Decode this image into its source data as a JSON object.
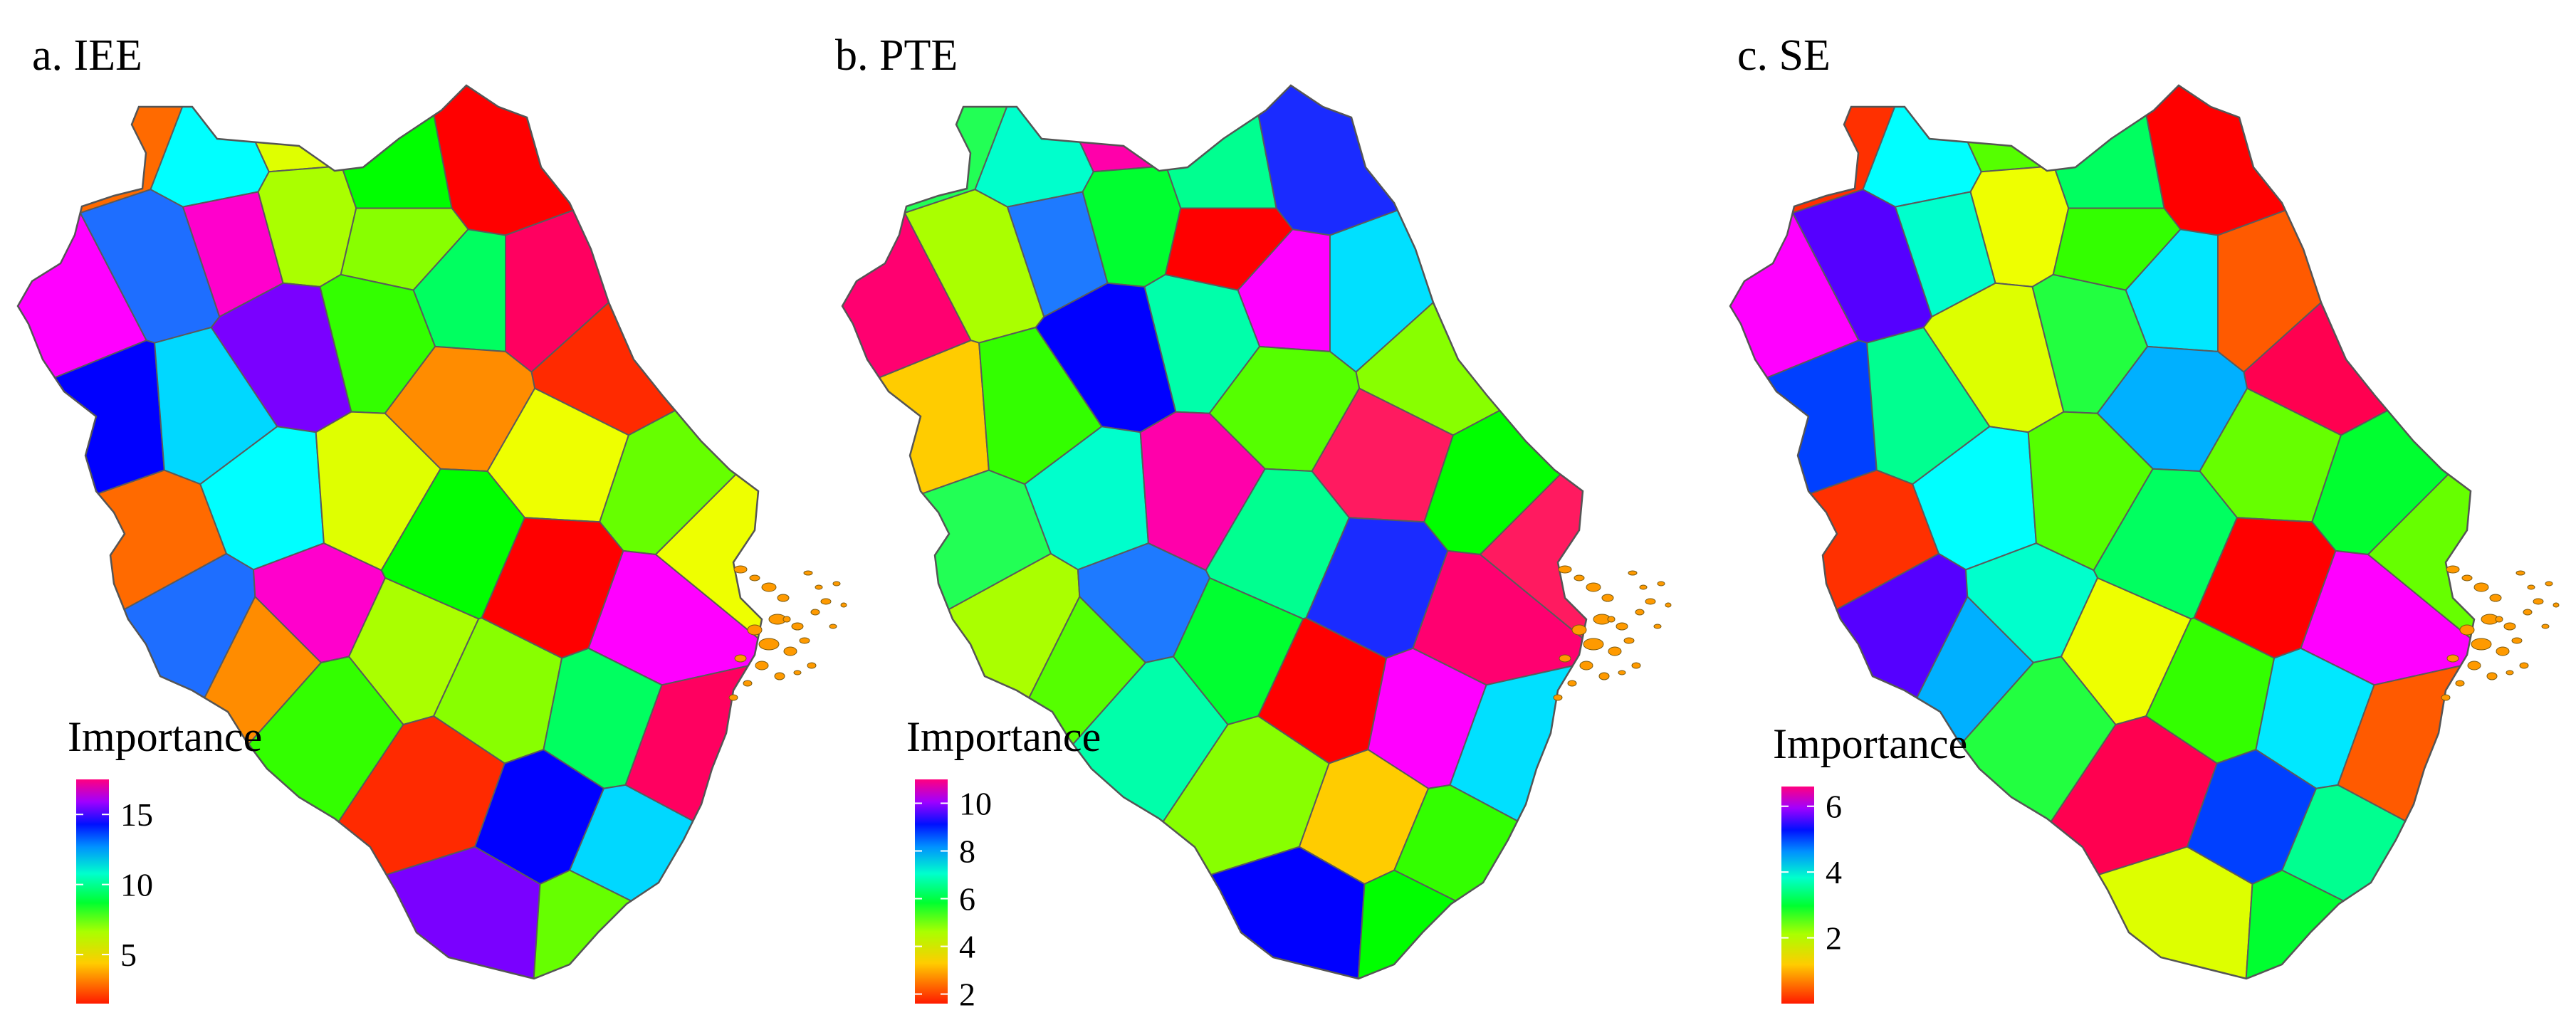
{
  "figure": {
    "panels": [
      {
        "id": "iee",
        "title": "a. IEE",
        "legend": {
          "title": "Importance",
          "min": 1.5,
          "max": 17.5,
          "ticks": [
            "15",
            "10",
            "5"
          ],
          "tick_values": [
            15,
            10,
            5
          ]
        },
        "colors": [
          "#ff6a00",
          "#00ffff",
          "#dfff00",
          "#00ff00",
          "#ff0000",
          "#ff00ff",
          "#1e6eff",
          "#ff00cc",
          "#aaff00",
          "#88ff00",
          "#00ff60",
          "#ff0060",
          "#ff2a00",
          "#0000ff",
          "#00d8ff",
          "#7a00ff",
          "#33ff00",
          "#ff8c00",
          "#eeff00",
          "#66ff00"
        ],
        "island_color": "#ff9a00"
      },
      {
        "id": "pte",
        "title": "b. PTE",
        "legend": {
          "title": "Importance",
          "min": 1.6,
          "max": 11.0,
          "ticks": [
            "10",
            "8",
            "6",
            "4",
            "2"
          ],
          "tick_values": [
            10,
            8,
            6,
            4,
            2
          ]
        },
        "colors": [
          "#22ff55",
          "#00ffcc",
          "#ff00aa",
          "#00ff90",
          "#1a2bff",
          "#ff0070",
          "#aaff00",
          "#1e7aff",
          "#00ff30",
          "#ff0000",
          "#ff00ff",
          "#00e0ff",
          "#88ff00",
          "#ffcc00",
          "#33ff00",
          "#0000ff",
          "#00ffaa",
          "#55ff00",
          "#ff1a60",
          "#00ff00"
        ],
        "island_color": "#ff9a00"
      },
      {
        "id": "se",
        "title": "c. SE",
        "legend": {
          "title": "Importance",
          "min": 0.0,
          "max": 6.6,
          "ticks": [
            "6",
            "4",
            "2"
          ],
          "tick_values": [
            6,
            4,
            2
          ]
        },
        "colors": [
          "#ff3000",
          "#00ffff",
          "#55ff00",
          "#00ff60",
          "#ff0000",
          "#ff00ff",
          "#5500ff",
          "#00ffcc",
          "#eeff00",
          "#33ff00",
          "#00e8ff",
          "#ff5a00",
          "#ff0050",
          "#0040ff",
          "#00ff90",
          "#ddff00",
          "#22ff40",
          "#00b0ff",
          "#66ff00",
          "#00ff30"
        ],
        "island_color": "#ff9a00"
      }
    ]
  }
}
